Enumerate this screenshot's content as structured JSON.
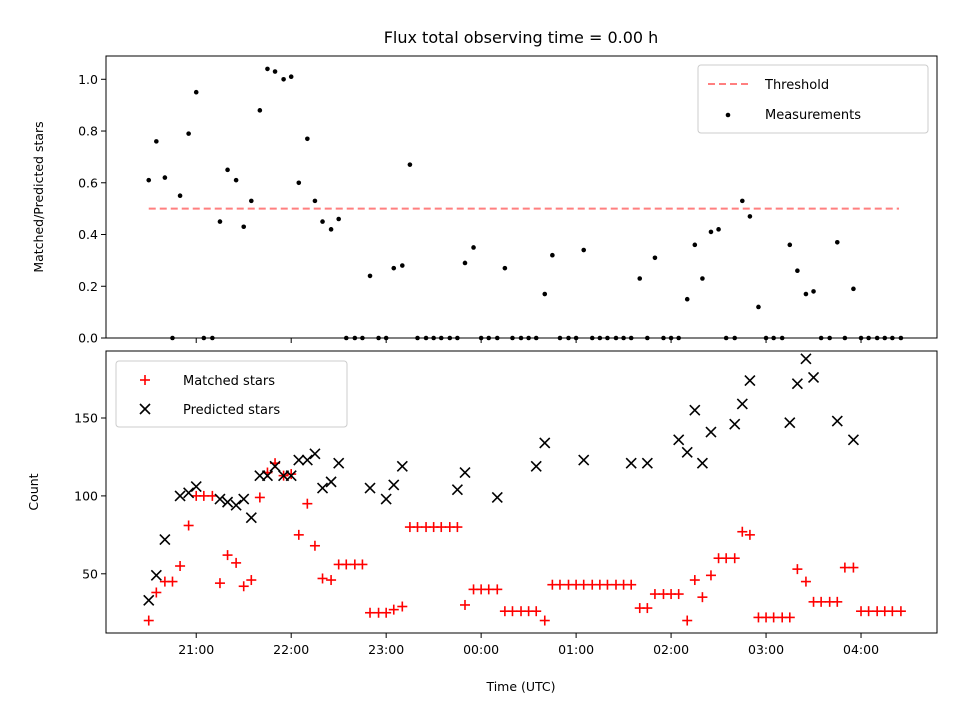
{
  "chart_data": [
    {
      "type": "scatter",
      "title": "Flux total observing time = 0.00 h",
      "xlabel": "",
      "ylabel": "Matched/Predicted stars",
      "x_unit": "hours after 00:00 UTC (negative = previous evening)",
      "xlim": [
        -3.95,
        4.8
      ],
      "ylim": [
        0,
        1.09
      ],
      "y_ticks": [
        0.0,
        0.2,
        0.4,
        0.6,
        0.8,
        1.0
      ],
      "y_tick_labels": [
        "0.0",
        "0.2",
        "0.4",
        "0.6",
        "0.8",
        "1.0"
      ],
      "grid": false,
      "legend_position": "upper right",
      "series": [
        {
          "name": "Threshold",
          "kind": "line",
          "style": "dashed",
          "color": "#ff7f7f",
          "x": [
            -3.5,
            4.4
          ],
          "y": [
            0.5,
            0.5
          ]
        },
        {
          "name": "Measurements",
          "kind": "scatter",
          "marker": "dot",
          "color": "#000000",
          "x": [
            -3.5,
            -3.42,
            -3.33,
            -3.25,
            -3.17,
            -3.08,
            -3.0,
            -2.92,
            -2.83,
            -2.75,
            -2.67,
            -2.58,
            -2.5,
            -2.42,
            -2.33,
            -2.25,
            -2.17,
            -2.08,
            -2.0,
            -1.92,
            -1.83,
            -1.75,
            -1.67,
            -1.58,
            -1.5,
            -1.42,
            -1.33,
            -1.25,
            -1.17,
            -1.08,
            -1.0,
            -0.92,
            -0.83,
            -0.75,
            -0.67,
            -0.58,
            -0.5,
            -0.42,
            -0.33,
            -0.25,
            -0.17,
            -0.08,
            0.0,
            0.08,
            0.17,
            0.25,
            0.33,
            0.42,
            0.5,
            0.58,
            0.67,
            0.75,
            0.83,
            0.92,
            1.0,
            1.08,
            1.17,
            1.25,
            1.33,
            1.42,
            1.5,
            1.58,
            1.67,
            1.75,
            1.83,
            1.92,
            2.0,
            2.08,
            2.17,
            2.25,
            2.33,
            2.42,
            2.5,
            2.58,
            2.67,
            2.75,
            2.83,
            2.92,
            3.0,
            3.08,
            3.17,
            3.25,
            3.33,
            3.42,
            3.5,
            3.58,
            3.67,
            3.75,
            3.83,
            3.92,
            4.0,
            4.08,
            4.17,
            4.25,
            4.33,
            4.42
          ],
          "y": [
            0.61,
            0.76,
            0.62,
            0.0,
            0.55,
            0.79,
            0.95,
            0.0,
            0.0,
            0.45,
            0.65,
            0.61,
            0.43,
            0.53,
            0.88,
            1.04,
            1.03,
            1.0,
            1.01,
            0.6,
            0.77,
            0.53,
            0.45,
            0.42,
            0.46,
            0.0,
            0.0,
            0.0,
            0.24,
            0.0,
            0.0,
            0.27,
            0.28,
            0.67,
            0.0,
            0.0,
            0.0,
            0.0,
            0.0,
            0.0,
            0.29,
            0.35,
            0.0,
            0.0,
            0.0,
            0.27,
            0.0,
            0.0,
            0.0,
            0.0,
            0.17,
            0.32,
            0.0,
            0.0,
            0.0,
            0.34,
            0.0,
            0.0,
            0.0,
            0.0,
            0.0,
            0.0,
            0.23,
            0.0,
            0.31,
            0.0,
            0.0,
            0.0,
            0.15,
            0.36,
            0.23,
            0.41,
            0.42,
            0.0,
            0.0,
            0.53,
            0.47,
            0.12,
            0.0,
            0.0,
            0.0,
            0.36,
            0.26,
            0.17,
            0.18,
            0.0,
            0.0,
            0.37,
            0.0,
            0.19,
            0.0,
            0.0,
            0.0,
            0.0,
            0.0,
            0.0
          ]
        }
      ]
    },
    {
      "type": "scatter",
      "title": "",
      "xlabel": "Time (UTC)",
      "ylabel": "Count",
      "x_unit": "hours after 00:00 UTC (negative = previous evening)",
      "xlim": [
        -3.95,
        4.8
      ],
      "ylim": [
        12,
        193
      ],
      "y_ticks": [
        50,
        100,
        150
      ],
      "y_tick_labels": [
        "50",
        "100",
        "150"
      ],
      "x_ticks": [
        -3,
        -2,
        -1,
        0,
        1,
        2,
        3,
        4
      ],
      "x_tick_labels": [
        "21:00",
        "22:00",
        "23:00",
        "00:00",
        "01:00",
        "02:00",
        "03:00",
        "04:00"
      ],
      "grid": false,
      "legend_position": "upper left",
      "series": [
        {
          "name": "Matched stars",
          "kind": "scatter",
          "marker": "plus",
          "color": "#ff0000",
          "x": [
            -3.5,
            -3.42,
            -3.33,
            -3.25,
            -3.17,
            -3.08,
            -3.0,
            -2.92,
            -2.83,
            -2.75,
            -2.67,
            -2.58,
            -2.5,
            -2.42,
            -2.33,
            -2.25,
            -2.17,
            -2.08,
            -2.0,
            -1.92,
            -1.83,
            -1.75,
            -1.67,
            -1.58,
            -1.5,
            -1.42,
            -1.33,
            -1.25,
            -1.17,
            -1.08,
            -1.0,
            -0.92,
            -0.83,
            -0.75,
            -0.67,
            -0.58,
            -0.5,
            -0.42,
            -0.33,
            -0.25,
            -0.17,
            -0.08,
            0.0,
            0.08,
            0.17,
            0.25,
            0.33,
            0.42,
            0.5,
            0.58,
            0.67,
            0.75,
            0.83,
            0.92,
            1.0,
            1.08,
            1.17,
            1.25,
            1.33,
            1.42,
            1.5,
            1.58,
            1.67,
            1.75,
            1.83,
            1.92,
            2.0,
            2.08,
            2.17,
            2.25,
            2.33,
            2.42,
            2.5,
            2.58,
            2.67,
            2.75,
            2.83,
            2.92,
            3.0,
            3.08,
            3.17,
            3.25,
            3.33,
            3.42,
            3.5,
            3.58,
            3.67,
            3.75,
            3.83,
            3.92,
            4.0,
            4.08,
            4.17,
            4.25,
            4.33,
            4.42
          ],
          "y": [
            20,
            38,
            45,
            45,
            55,
            81,
            100,
            100,
            100,
            44,
            62,
            57,
            42,
            46,
            99,
            115,
            121,
            113,
            114,
            75,
            95,
            68,
            47,
            46,
            56,
            56,
            56,
            56,
            25,
            25,
            25,
            27,
            29,
            80,
            80,
            80,
            80,
            80,
            80,
            80,
            30,
            40,
            40,
            40,
            40,
            26,
            26,
            26,
            26,
            26,
            20,
            43,
            43,
            43,
            43,
            43,
            43,
            43,
            43,
            43,
            43,
            43,
            28,
            28,
            37,
            37,
            37,
            37,
            20,
            46,
            35,
            49,
            60,
            60,
            60,
            77,
            75,
            22,
            22,
            22,
            22,
            22,
            53,
            45,
            32,
            32,
            32,
            32,
            54,
            54,
            26,
            26,
            26,
            26,
            26,
            26
          ]
        },
        {
          "name": "Predicted stars",
          "kind": "scatter",
          "marker": "x",
          "color": "#000000",
          "x": [
            -3.5,
            -3.42,
            -3.33,
            -3.17,
            -3.08,
            -3.0,
            -2.75,
            -2.67,
            -2.58,
            -2.5,
            -2.42,
            -2.33,
            -2.25,
            -2.17,
            -2.08,
            -2.0,
            -1.92,
            -1.83,
            -1.75,
            -1.67,
            -1.58,
            -1.5,
            -1.17,
            -1.0,
            -0.92,
            -0.83,
            -0.25,
            -0.17,
            0.17,
            0.58,
            0.67,
            1.08,
            1.58,
            1.75,
            2.08,
            2.17,
            2.25,
            2.33,
            2.42,
            2.67,
            2.75,
            2.83,
            3.25,
            3.33,
            3.42,
            3.5,
            3.75,
            3.92
          ],
          "y": [
            33,
            49,
            72,
            100,
            102,
            106,
            98,
            96,
            94,
            98,
            86,
            113,
            113,
            119,
            113,
            113,
            123,
            123,
            127,
            105,
            109,
            121,
            105,
            98,
            107,
            119,
            104,
            115,
            99,
            119,
            134,
            123,
            121,
            121,
            136,
            128,
            155,
            121,
            141,
            146,
            159,
            174,
            147,
            172,
            188,
            176,
            148,
            136
          ]
        }
      ]
    }
  ]
}
